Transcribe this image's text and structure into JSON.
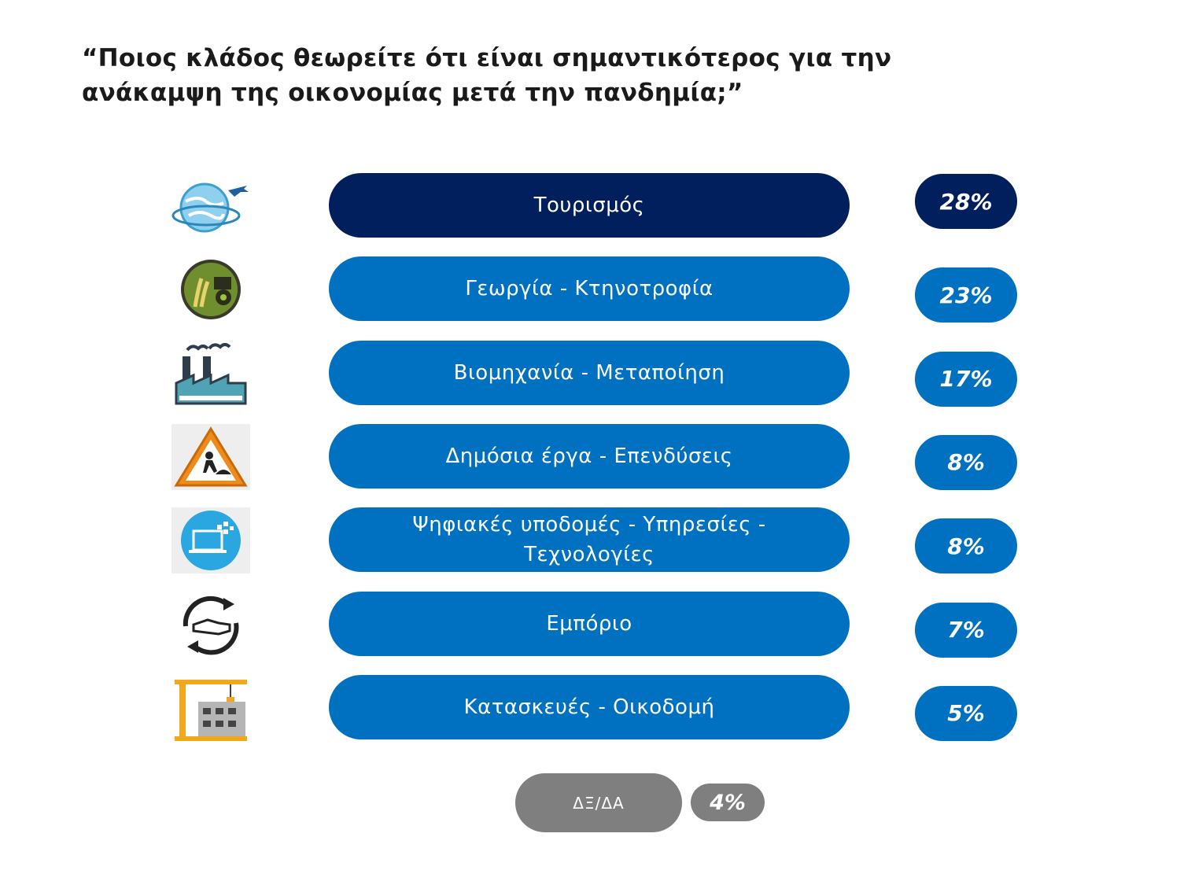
{
  "title": {
    "line1": "“Ποιος κλάδος θεωρείτε ότι είναι σημαντικότερος για την",
    "line2": "ανάκαμψη της οικονομίας μετά την πανδημία;”"
  },
  "colors": {
    "highlight": "#001f5c",
    "primary": "#0070c0",
    "neutral": "#7f7f7f"
  },
  "chart_data": {
    "type": "bar",
    "categories": [
      "Τουρισμός",
      "Γεωργία - Κτηνοτροφία",
      "Βιομηχανία - Μεταποίηση",
      "Δημόσια έργα - Επενδύσεις",
      "Ψηφιακές υποδομές - Υπηρεσίες - Τεχνολογίες",
      "Εμπόριο",
      "Κατασκευές - Οικοδομή"
    ],
    "values": [
      28,
      23,
      17,
      8,
      8,
      7,
      5
    ],
    "value_labels": [
      "28%",
      "23%",
      "17%",
      "8%",
      "8%",
      "7%",
      "5%"
    ],
    "icons": [
      "globe-airplane-icon",
      "agriculture-icon",
      "factory-icon",
      "roadworks-icon",
      "digital-laptop-icon",
      "trade-handshake-icon",
      "construction-crane-icon"
    ],
    "unit": "%",
    "other": {
      "label": "ΔΞ/ΔΑ",
      "value": 4,
      "value_label": "4%"
    }
  }
}
